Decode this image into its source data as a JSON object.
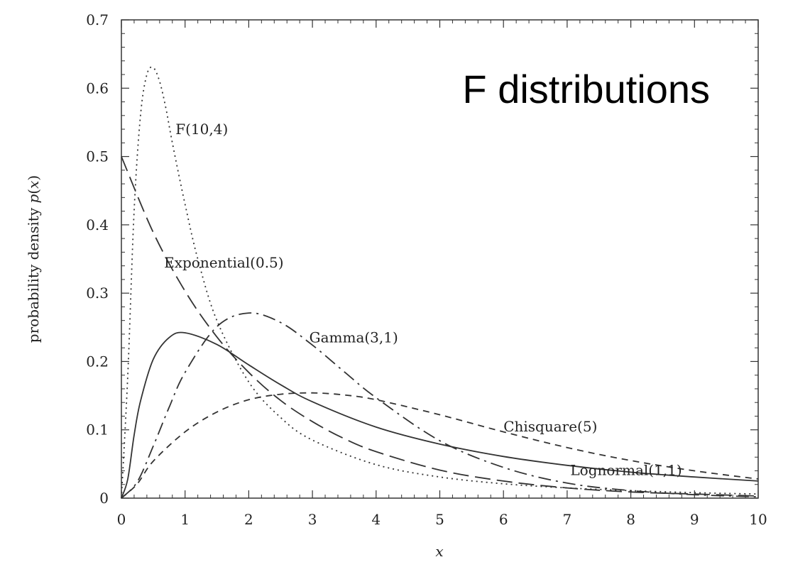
{
  "chart_data": {
    "type": "line",
    "title": "F distributions",
    "xlabel": "x",
    "ylabel_parts": [
      "probability density ",
      "p",
      "(",
      "x",
      ")"
    ],
    "xlim": [
      0,
      10
    ],
    "ylim": [
      0,
      0.7
    ],
    "x_ticks": [
      0,
      1,
      2,
      3,
      4,
      5,
      6,
      7,
      8,
      9,
      10
    ],
    "y_ticks": [
      0,
      0.1,
      0.2,
      0.3,
      0.4,
      0.5,
      0.6,
      0.7
    ],
    "x_tick_labels": [
      "0",
      "1",
      "2",
      "3",
      "4",
      "5",
      "6",
      "7",
      "8",
      "9",
      "10"
    ],
    "y_tick_labels": [
      "0",
      "0.1",
      "0.2",
      "0.3",
      "0.4",
      "0.5",
      "0.6",
      "0.7"
    ],
    "grid": false,
    "legend": "none",
    "series": [
      {
        "name": "F(10,4)",
        "style": "dotted",
        "x": [
          0,
          0.1,
          0.2,
          0.3,
          0.4,
          0.5,
          0.6,
          0.7,
          0.8,
          1.0,
          1.2,
          1.5,
          2.0,
          2.5,
          3.0,
          4.0,
          5.0,
          6.0,
          7.0,
          8.0,
          9.0,
          10.0
        ],
        "y": [
          0,
          0.18,
          0.42,
          0.56,
          0.62,
          0.63,
          0.61,
          0.57,
          0.52,
          0.43,
          0.35,
          0.26,
          0.17,
          0.118,
          0.085,
          0.049,
          0.031,
          0.021,
          0.015,
          0.011,
          0.008,
          0.006
        ]
      },
      {
        "name": "Exponential(0.5)",
        "style": "long-dash",
        "x": [
          0,
          0.5,
          1,
          1.5,
          2,
          2.5,
          3,
          3.5,
          4,
          5,
          6,
          7,
          8,
          9,
          10
        ],
        "y": [
          0.5,
          0.389,
          0.303,
          0.236,
          0.184,
          0.143,
          0.112,
          0.087,
          0.068,
          0.041,
          0.025,
          0.015,
          0.009,
          0.006,
          0.003
        ]
      },
      {
        "name": "Gamma(3,1)",
        "style": "dash-dot",
        "x": [
          0,
          0.25,
          0.5,
          0.75,
          1,
          1.5,
          2,
          2.5,
          3,
          3.5,
          4,
          5,
          6,
          7,
          8,
          9,
          10
        ],
        "y": [
          0,
          0.024,
          0.076,
          0.133,
          0.184,
          0.251,
          0.271,
          0.257,
          0.224,
          0.185,
          0.147,
          0.084,
          0.045,
          0.022,
          0.011,
          0.005,
          0.002
        ]
      },
      {
        "name": "Chisquare(5)",
        "style": "short-dash",
        "x": [
          0,
          0.25,
          0.5,
          1,
          1.5,
          2,
          2.5,
          3,
          3.5,
          4,
          5,
          6,
          7,
          8,
          9,
          10
        ],
        "y": [
          0,
          0.021,
          0.054,
          0.097,
          0.126,
          0.144,
          0.152,
          0.154,
          0.151,
          0.144,
          0.122,
          0.097,
          0.074,
          0.055,
          0.04,
          0.028
        ]
      },
      {
        "name": "Lognormal(1,1)",
        "style": "solid",
        "x": [
          0,
          0.1,
          0.2,
          0.3,
          0.5,
          0.75,
          1,
          1.5,
          2,
          2.5,
          3,
          4,
          5,
          6,
          7,
          8,
          9,
          10
        ],
        "y": [
          0,
          0.028,
          0.092,
          0.142,
          0.203,
          0.235,
          0.242,
          0.225,
          0.195,
          0.166,
          0.141,
          0.104,
          0.079,
          0.061,
          0.048,
          0.038,
          0.031,
          0.025
        ]
      }
    ]
  }
}
